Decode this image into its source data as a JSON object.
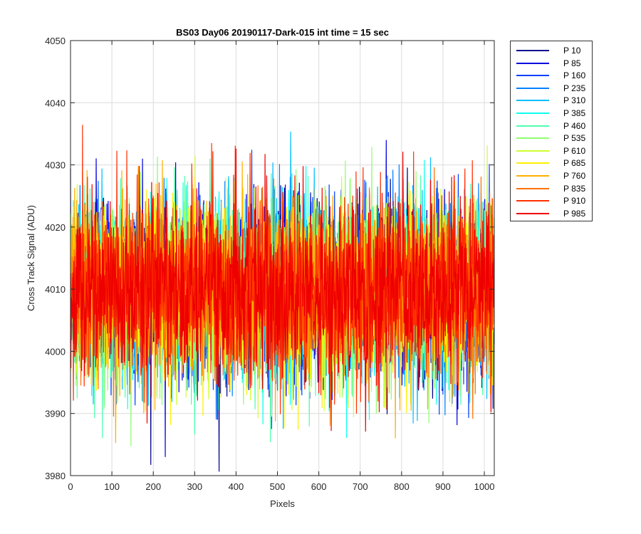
{
  "chart_data": {
    "type": "line",
    "title": "BS03 Day06 20190117-Dark-015 int time = 15 sec",
    "xlabel": "Pixels",
    "ylabel": "Cross Track Signal (ADU)",
    "xlim": [
      0,
      1024
    ],
    "ylim": [
      3980,
      4050
    ],
    "xticks": [
      0,
      100,
      200,
      300,
      400,
      500,
      600,
      700,
      800,
      900,
      1000
    ],
    "yticks": [
      3980,
      3990,
      4000,
      4010,
      4020,
      4030,
      4040,
      4050
    ],
    "grid": true,
    "legend_position": "outside-right",
    "n_points": 1024,
    "approx_mean": 4010,
    "approx_std": 7,
    "series": [
      {
        "name": "P 10",
        "color": "#00008f"
      },
      {
        "name": "P 85",
        "color": "#0000df"
      },
      {
        "name": "P 160",
        "color": "#0040ff"
      },
      {
        "name": "P 235",
        "color": "#0080ff"
      },
      {
        "name": "P 310",
        "color": "#00bfff"
      },
      {
        "name": "P 385",
        "color": "#10ffef"
      },
      {
        "name": "P 460",
        "color": "#50ffaf"
      },
      {
        "name": "P 535",
        "color": "#8fff70"
      },
      {
        "name": "P 610",
        "color": "#cfff30"
      },
      {
        "name": "P 685",
        "color": "#ffef00"
      },
      {
        "name": "P 760",
        "color": "#ffb000"
      },
      {
        "name": "P 835",
        "color": "#ff7000"
      },
      {
        "name": "P 910",
        "color": "#ff3000"
      },
      {
        "name": "P 985",
        "color": "#ef0000"
      }
    ]
  }
}
